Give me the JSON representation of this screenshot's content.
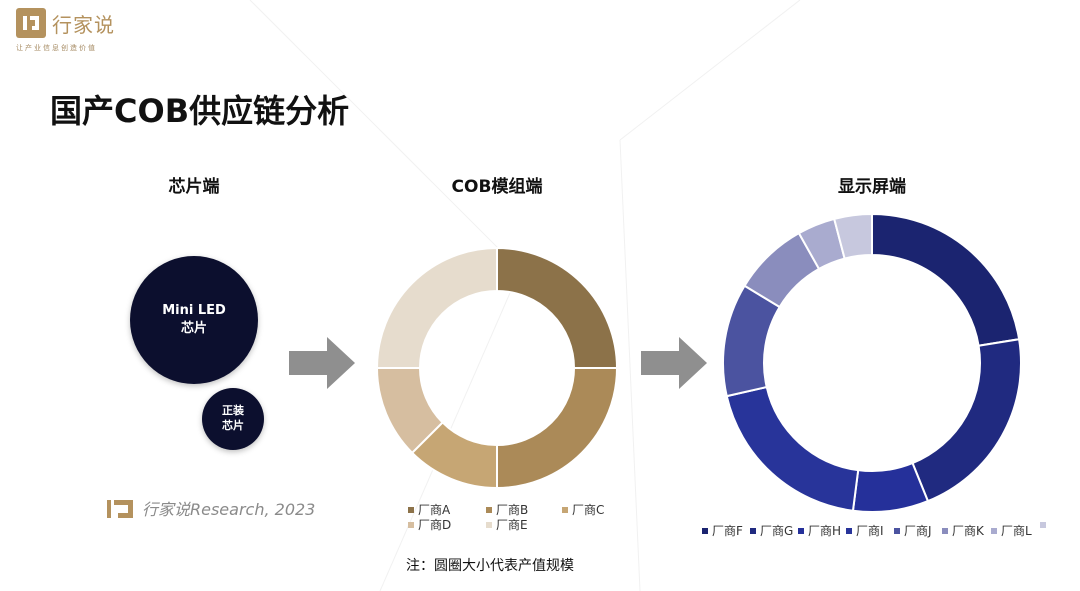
{
  "logo": {
    "name": "行家说",
    "tagline": "让产业信息创造价值",
    "mark_icon": "brand-logo-icon"
  },
  "page_title": "国产COB供应链分析",
  "sections": {
    "chip": "芯片端",
    "cob": "COB模组端",
    "display": "显示屏端"
  },
  "bubbles": [
    {
      "label": "Mini LED\n芯片"
    },
    {
      "label": "正装\n芯片"
    }
  ],
  "source": {
    "text": "行家说Research, 2023"
  },
  "note": "注：圆圈大小代表产值规模",
  "colors": {
    "bubble": "#0c0f2e",
    "arrow": "#8f8f8f",
    "brand": "#b4925e"
  },
  "chart_data": [
    {
      "type": "pie",
      "donut": true,
      "section": "COB模组端",
      "categories": [
        "厂商A",
        "厂商B",
        "厂商C",
        "厂商D",
        "厂商E"
      ],
      "values": [
        25,
        25,
        12.5,
        12.5,
        25
      ],
      "colors": [
        "#8c7249",
        "#ab8a58",
        "#c6a674",
        "#d6bea0",
        "#e6dccd"
      ],
      "legend_position": "bottom"
    },
    {
      "type": "pie",
      "donut": true,
      "section": "显示屏端",
      "categories": [
        "厂商F",
        "厂商G",
        "厂商H",
        "厂商I",
        "厂商J",
        "厂商K",
        "厂商L",
        ""
      ],
      "values": [
        22,
        21,
        8,
        19,
        12,
        8,
        4,
        4
      ],
      "colors": [
        "#1b2470",
        "#202a80",
        "#25309a",
        "#28349a",
        "#4b53a0",
        "#8a8dbd",
        "#a9abcf",
        "#c7c8de"
      ],
      "legend_position": "bottom"
    }
  ]
}
